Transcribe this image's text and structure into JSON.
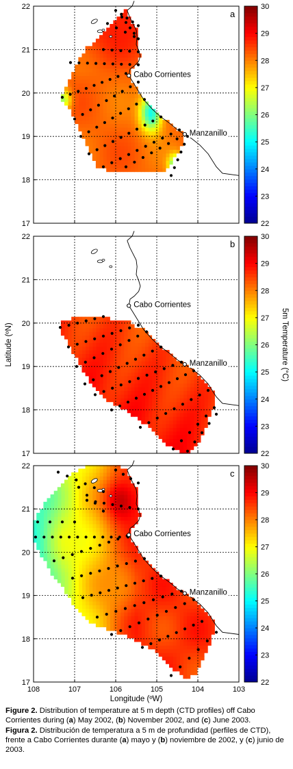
{
  "colors": {
    "colormap": [
      "#00008f",
      "#0000ff",
      "#0080ff",
      "#00ffff",
      "#80ff80",
      "#ffff00",
      "#ff8000",
      "#ff0000",
      "#800000"
    ],
    "coast": "#000000",
    "station": "#000000",
    "grid": "#000000"
  },
  "chart_data": [
    {
      "type": "heatmap",
      "panel_label": "a",
      "xlim": [
        108,
        103
      ],
      "ylim": [
        17,
        22
      ],
      "x_ticks": [
        "108",
        "107",
        "106",
        "105",
        "104",
        "103"
      ],
      "y_ticks": [
        "17",
        "18",
        "19",
        "20",
        "21",
        "22"
      ],
      "xlabel": "",
      "ylabel": "",
      "colorbar": {
        "range": [
          22,
          30
        ],
        "ticks": [
          "22",
          "23",
          "24",
          "25",
          "26",
          "27",
          "28",
          "29",
          "30"
        ],
        "label": ""
      },
      "places": [
        {
          "name": "Cabo Corrientes",
          "lon": 105.68,
          "lat": 20.4
        },
        {
          "name": "Manzanillo",
          "lon": 104.32,
          "lat": 19.05
        }
      ],
      "field_mean_c": 28.3,
      "cool_patch": {
        "lon": 105.2,
        "lat": 19.5,
        "min_c": 25.0
      }
    },
    {
      "type": "heatmap",
      "panel_label": "b",
      "xlim": [
        108,
        103
      ],
      "ylim": [
        17,
        22
      ],
      "x_ticks": [
        "108",
        "107",
        "106",
        "105",
        "104",
        "103"
      ],
      "y_ticks": [
        "17",
        "18",
        "19",
        "20",
        "21",
        "22"
      ],
      "xlabel": "",
      "ylabel": "Latitude (ºN)",
      "colorbar": {
        "range": [
          22,
          30
        ],
        "ticks": [
          "22",
          "23",
          "24",
          "25",
          "26",
          "27",
          "28",
          "29",
          "30"
        ],
        "label": "5m Temperature (°C)"
      },
      "places": [
        {
          "name": "Cabo Corrientes",
          "lon": 105.68,
          "lat": 20.4
        },
        {
          "name": "Manzanillo",
          "lon": 104.32,
          "lat": 19.05
        }
      ],
      "field_mean_c": 28.9
    },
    {
      "type": "heatmap",
      "panel_label": "c",
      "xlim": [
        108,
        103
      ],
      "ylim": [
        17,
        22
      ],
      "x_ticks": [
        "108",
        "107",
        "106",
        "105",
        "104",
        "103"
      ],
      "y_ticks": [
        "17",
        "18",
        "19",
        "20",
        "21",
        "22"
      ],
      "xlabel": "Longitude (ºW)",
      "ylabel": "",
      "colorbar": {
        "range": [
          22,
          30
        ],
        "ticks": [
          "22",
          "23",
          "24",
          "25",
          "26",
          "27",
          "28",
          "29",
          "30"
        ],
        "label": ""
      },
      "places": [
        {
          "name": "Cabo Corrientes",
          "lon": 105.68,
          "lat": 20.4
        },
        {
          "name": "Manzanillo",
          "lon": 104.32,
          "lat": 19.05
        }
      ],
      "field_west_c": 26.0,
      "field_east_c": 28.6
    }
  ],
  "caption": {
    "en_label": "Figure 2.",
    "en_text": " Distribution of temperature at 5 m depth (CTD profiles) off Cabo Corrientes during (",
    "en_a": "a",
    "en_t2": ") May 2002, (",
    "en_b": "b",
    "en_t3": ") November 2002, and (",
    "en_c": "c",
    "en_t4": ") June 2003.",
    "es_label": "Figura 2.",
    "es_text": " Distribución de temperatura a 5 m de profundidad (perfiles de CTD), frente  a Cabo Corrientes durante (",
    "es_a": "a",
    "es_t2": ") mayo y (",
    "es_b": "b",
    "es_t3": ") noviembre de 2002, y (",
    "es_c": "c",
    "es_t4": ") junio de 2003."
  }
}
